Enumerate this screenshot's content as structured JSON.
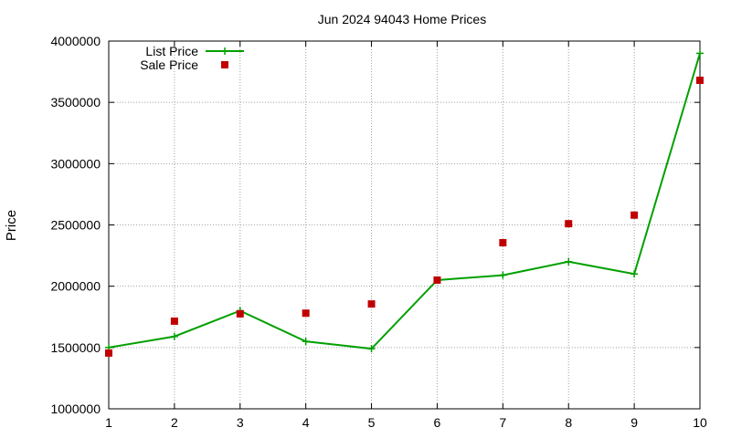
{
  "chart_data": {
    "type": "line",
    "title": "Jun 2024 94043 Home Prices",
    "xlabel": "",
    "ylabel": "Price",
    "x": [
      1,
      2,
      3,
      4,
      5,
      6,
      7,
      8,
      9,
      10
    ],
    "xlim": [
      1,
      10
    ],
    "ylim": [
      1000000,
      4000000
    ],
    "x_ticks": [
      "1",
      "2",
      "3",
      "4",
      "5",
      "6",
      "7",
      "8",
      "9",
      "10"
    ],
    "y_ticks": [
      "1000000",
      "1500000",
      "2000000",
      "2500000",
      "3000000",
      "3500000",
      "4000000"
    ],
    "grid": true,
    "legend_position": "top-left",
    "series": [
      {
        "name": "List Price",
        "style": "line-with-plus-markers",
        "color": "#00a000",
        "values": [
          1500000,
          1590000,
          1800000,
          1550000,
          1490000,
          2050000,
          2090000,
          2200000,
          2100000,
          3900000
        ]
      },
      {
        "name": "Sale Price",
        "style": "square-markers",
        "color": "#c00000",
        "values": [
          1455000,
          1715000,
          1775000,
          1780000,
          1855000,
          2050000,
          2355000,
          2510000,
          2580000,
          3680000
        ]
      }
    ]
  }
}
